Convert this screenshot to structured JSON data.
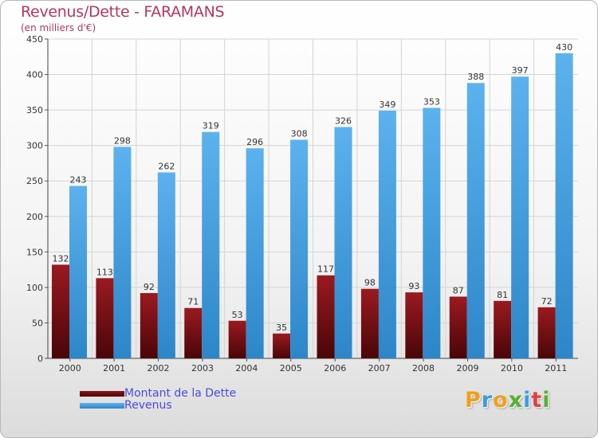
{
  "title": "Revenus/Dette - FARAMANS",
  "subtitle": "(en milliers d'€)",
  "colors": {
    "debt": "#7a0f12",
    "revenue": "#3a9be0",
    "title": "#b5365a",
    "legend_text": "#4a4adf"
  },
  "logo": {
    "text": "Proxiti",
    "letters": [
      {
        "ch": "P",
        "color": "#f0a020"
      },
      {
        "ch": "r",
        "color": "#3c9ce0"
      },
      {
        "ch": "o",
        "color": "#f0a020"
      },
      {
        "ch": "x",
        "color": "#58b030"
      },
      {
        "ch": "i",
        "color": "#3c9ce0"
      },
      {
        "ch": "t",
        "color": "#e04040"
      },
      {
        "ch": "i",
        "color": "#58b030"
      }
    ]
  },
  "chart_data": {
    "type": "bar",
    "categories": [
      "2000",
      "2001",
      "2002",
      "2003",
      "2004",
      "2005",
      "2006",
      "2007",
      "2008",
      "2009",
      "2010",
      "2011"
    ],
    "series": [
      {
        "name": "Montant de la Dette",
        "values": [
          132,
          113,
          92,
          71,
          53,
          35,
          117,
          98,
          93,
          87,
          81,
          72
        ],
        "color": "#7a0f12"
      },
      {
        "name": "Revenus",
        "values": [
          243,
          298,
          262,
          319,
          296,
          308,
          326,
          349,
          353,
          388,
          397,
          430
        ],
        "color": "#3a9be0"
      }
    ],
    "yticks": [
      0,
      50,
      100,
      150,
      200,
      250,
      300,
      350,
      400,
      450
    ],
    "ylim": [
      0,
      450
    ],
    "grid": true,
    "data_labels": true,
    "legend_position": "bottom-left"
  }
}
